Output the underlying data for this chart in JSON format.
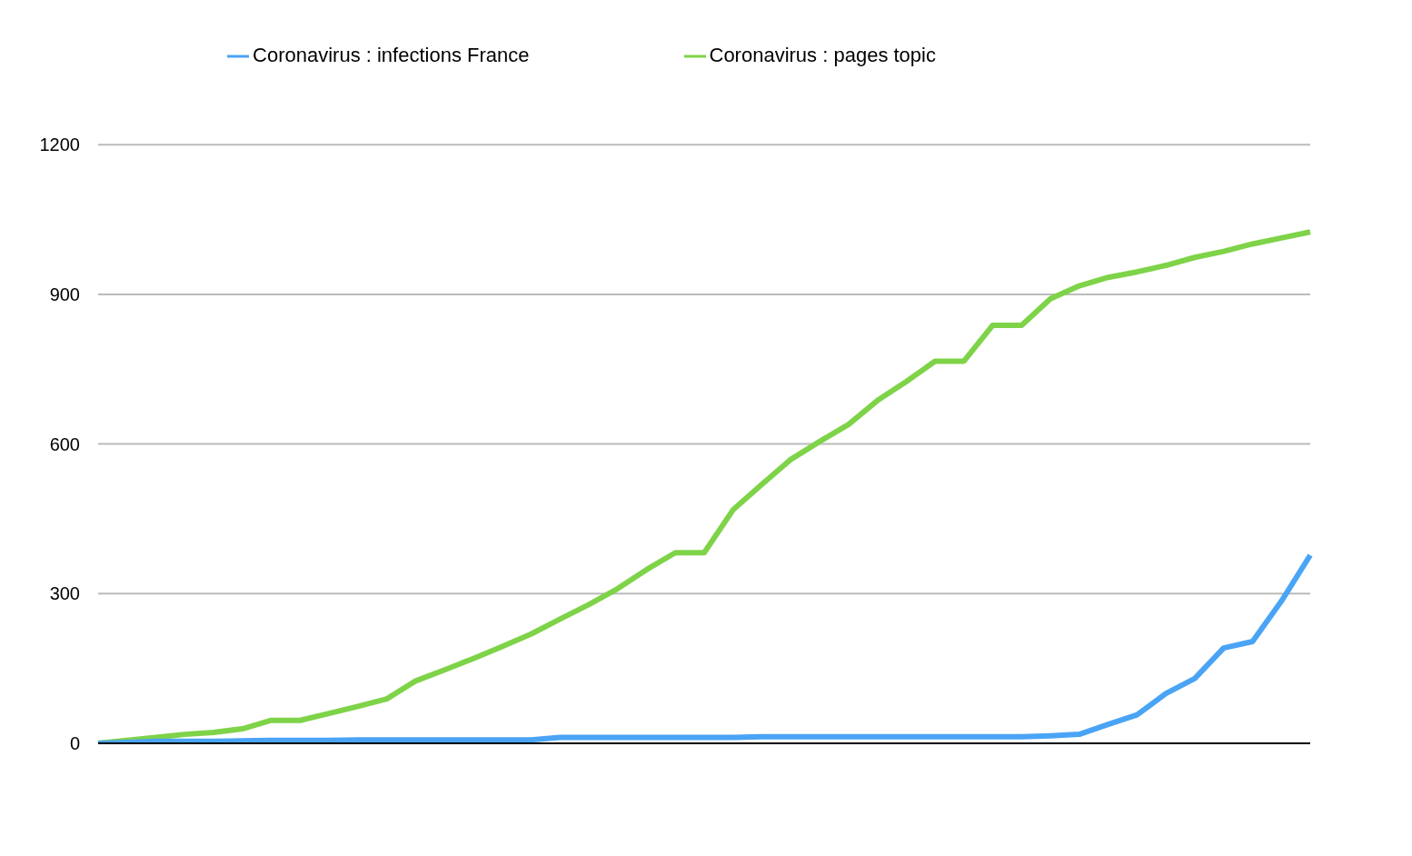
{
  "chart_data": {
    "type": "line",
    "categories": [
      null,
      null,
      null,
      null,
      null,
      null,
      null,
      null,
      null,
      null,
      null,
      null,
      null,
      null,
      null,
      null,
      null,
      null,
      null,
      null,
      null,
      null,
      null,
      null,
      null,
      null,
      null,
      null,
      null,
      null,
      null,
      null,
      null,
      null,
      null,
      null,
      null,
      null,
      null,
      null,
      null,
      null,
      null
    ],
    "series": [
      {
        "name": "Coronavirus : infections France",
        "color": "#4aa4f5",
        "values": [
          0,
          2,
          4,
          4,
          4,
          5,
          6,
          6,
          6,
          7,
          7,
          7,
          7,
          7,
          7,
          7,
          12,
          12,
          12,
          12,
          12,
          12,
          12,
          13,
          13,
          13,
          13,
          13,
          13,
          13,
          13,
          13,
          13,
          15,
          18,
          38,
          57,
          100,
          130,
          191,
          204,
          285,
          377
        ]
      },
      {
        "name": "Coronavirus : pages topic",
        "color": "#7ed348",
        "values": [
          0,
          6,
          12,
          18,
          22,
          29,
          46,
          46,
          60,
          74,
          89,
          125,
          147,
          170,
          194,
          219,
          249,
          278,
          310,
          348,
          382,
          382,
          468,
          519,
          569,
          605,
          639,
          687,
          725,
          766,
          766,
          838,
          838,
          891,
          917,
          934,
          945,
          958,
          974,
          986,
          1001,
          1013,
          1025
        ]
      }
    ],
    "ylim": [
      0,
      1200
    ],
    "yticks": [
      0,
      300,
      600,
      900,
      1200
    ],
    "grid": "y",
    "legend": "top",
    "tick_labels": "y",
    "marker": "none",
    "line_style": "solid"
  }
}
